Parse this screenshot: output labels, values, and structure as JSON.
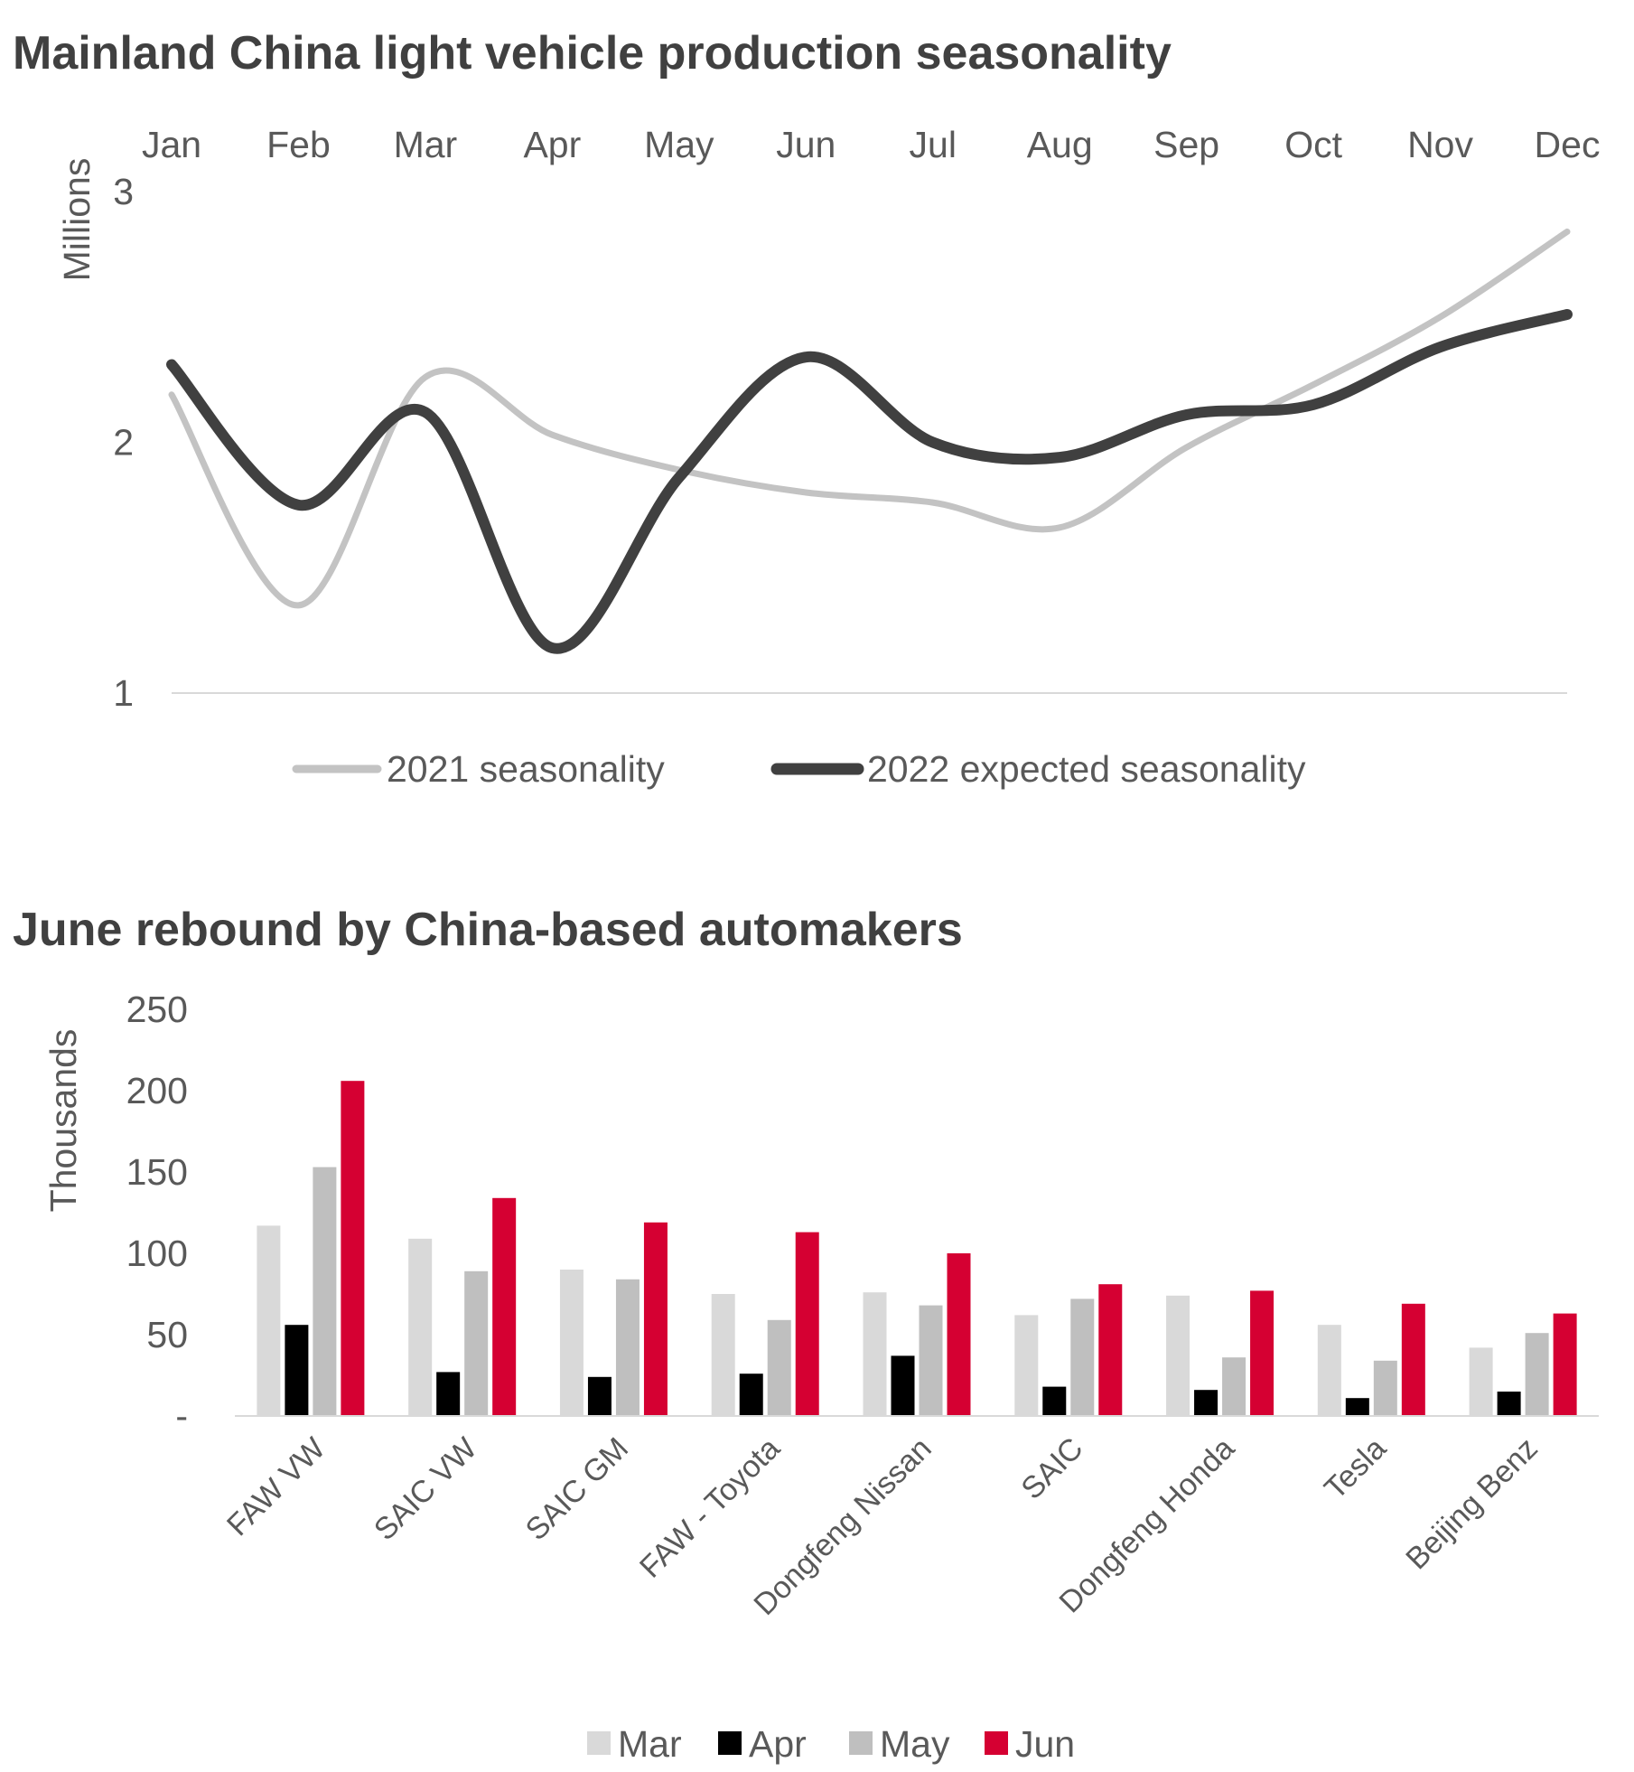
{
  "chart_data": [
    {
      "type": "line",
      "title": "Mainland China light vehicle production seasonality",
      "ylabel": "Millions",
      "ylim": [
        1,
        3
      ],
      "yticks": [
        "1",
        "2",
        "3"
      ],
      "categories": [
        "Jan",
        "Feb",
        "Mar",
        "Apr",
        "May",
        "Jun",
        "Jul",
        "Aug",
        "Sep",
        "Oct",
        "Nov",
        "Dec"
      ],
      "series": [
        {
          "name": "2021 seasonality",
          "color": "#c3c3c3",
          "values": [
            2.19,
            1.35,
            2.26,
            2.03,
            1.89,
            1.8,
            1.76,
            1.66,
            1.98,
            2.23,
            2.5,
            2.84
          ]
        },
        {
          "name": "2022 expected seasonality",
          "color": "#404040",
          "values": [
            2.31,
            1.75,
            2.12,
            1.18,
            1.86,
            2.34,
            2.0,
            1.94,
            2.11,
            2.15,
            2.38,
            2.51
          ]
        }
      ],
      "legend": "bottom"
    },
    {
      "type": "bar",
      "title": "June rebound by China-based automakers",
      "ylabel": "Thousands",
      "ylim": [
        0,
        250
      ],
      "yticks": [
        "-",
        "50",
        "100",
        "150",
        "200",
        "250"
      ],
      "categories": [
        "FAW VW",
        "SAIC VW",
        "SAIC GM",
        "FAW - Toyota",
        "Dongfeng Nissan",
        "SAIC",
        "Dongfeng Honda",
        "Tesla",
        "Beijing Benz"
      ],
      "series": [
        {
          "name": "Mar",
          "color": "#d9d9d9",
          "values": [
            117,
            109,
            90,
            75,
            76,
            62,
            74,
            56,
            42
          ]
        },
        {
          "name": "Apr",
          "color": "#000000",
          "values": [
            56,
            27,
            24,
            26,
            37,
            18,
            16,
            11,
            15
          ]
        },
        {
          "name": "May",
          "color": "#bfbfbf",
          "values": [
            153,
            89,
            84,
            59,
            68,
            72,
            36,
            34,
            51
          ]
        },
        {
          "name": "Jun",
          "color": "#d50032",
          "values": [
            206,
            134,
            119,
            113,
            100,
            81,
            77,
            69,
            63
          ]
        }
      ],
      "legend": "bottom"
    }
  ]
}
